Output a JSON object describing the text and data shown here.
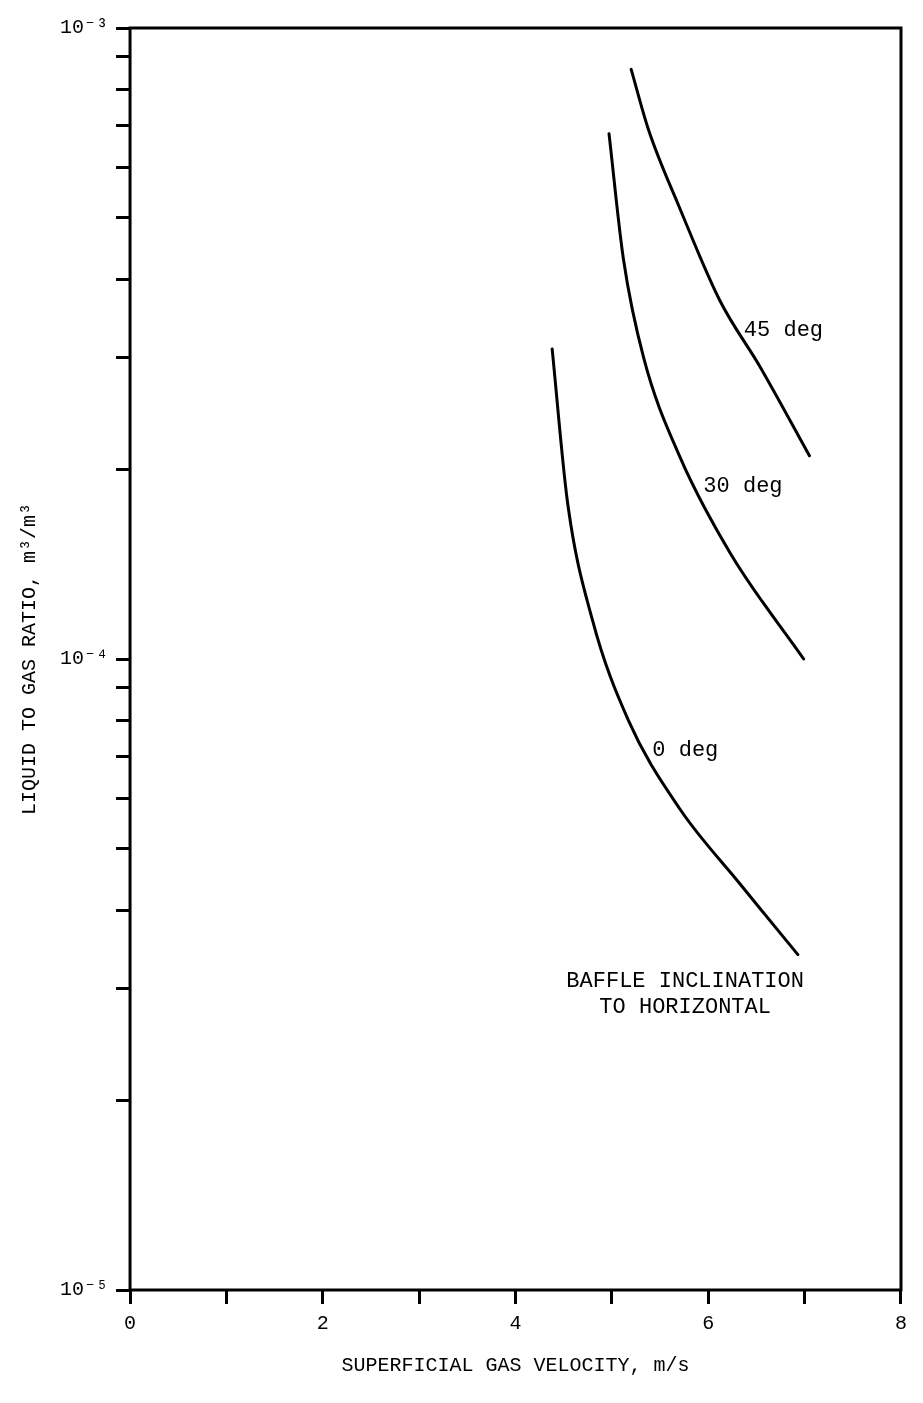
{
  "chart_data": {
    "type": "line",
    "xlabel": "SUPERFICIAL GAS VELOCITY, m/s",
    "ylabel": "LIQUID TO GAS RATIO, m³/m³",
    "log": "y",
    "marker": "none",
    "line_style": "solid",
    "xlim": [
      0,
      8
    ],
    "xticks": [
      0,
      {
        "value": 1,
        "label": null
      },
      2,
      {
        "value": 3,
        "label": null
      },
      4,
      {
        "value": 5,
        "label": null
      },
      6,
      {
        "value": 7,
        "label": null
      },
      8
    ],
    "ylim": [
      1e-05,
      0.001
    ],
    "yticks": [
      {
        "value": 1e-05,
        "label": "10⁻⁵"
      },
      {
        "value": 2e-05,
        "label": null
      },
      {
        "value": 3e-05,
        "label": null
      },
      {
        "value": 4e-05,
        "label": null
      },
      {
        "value": 5e-05,
        "label": null
      },
      {
        "value": 6e-05,
        "label": null
      },
      {
        "value": 7e-05,
        "label": null
      },
      {
        "value": 8e-05,
        "label": null
      },
      {
        "value": 9e-05,
        "label": null
      },
      {
        "value": 0.0001,
        "label": "10⁻⁴"
      },
      {
        "value": 0.0002,
        "label": null
      },
      {
        "value": 0.0003,
        "label": null
      },
      {
        "value": 0.0004,
        "label": null
      },
      {
        "value": 0.0005,
        "label": null
      },
      {
        "value": 0.0006,
        "label": null
      },
      {
        "value": 0.0007,
        "label": null
      },
      {
        "value": 0.0008,
        "label": null
      },
      {
        "value": 0.0009,
        "label": null
      },
      {
        "value": 0.001,
        "label": "10⁻³"
      }
    ],
    "series": [
      {
        "name": "45 deg",
        "color": "#000000",
        "x": [
          5.2,
          5.38,
          5.7,
          6.12,
          6.54,
          7.05
        ],
        "values": [
          0.00086,
          0.00069,
          0.00052,
          0.00037,
          0.00029,
          0.00021
        ]
      },
      {
        "name": "30 deg",
        "color": "#000000",
        "x": [
          4.97,
          5.12,
          5.33,
          5.7,
          6.23,
          6.99
        ],
        "values": [
          0.00068,
          0.00043,
          0.0003,
          0.00021,
          0.000147,
          0.0001
        ]
      },
      {
        "name": "0 deg",
        "color": "#000000",
        "x": [
          4.38,
          4.54,
          4.8,
          5.17,
          5.7,
          6.33,
          6.93
        ],
        "values": [
          0.00031,
          0.000177,
          0.000115,
          8e-05,
          5.8e-05,
          4.4e-05,
          3.4e-05
        ]
      }
    ],
    "annotations": [
      "BAFFLE INCLINATION\nTO HORIZONTAL"
    ]
  }
}
